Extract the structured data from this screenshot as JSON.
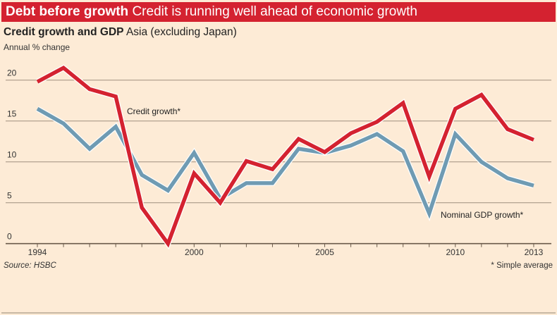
{
  "header": {
    "title_bold": "Debt before growth",
    "title_rest": "Credit is running well ahead of economic growth"
  },
  "chart_data": {
    "type": "line",
    "title": "Credit growth and GDP",
    "subtitle": "Asia (excluding Japan)",
    "ylabel": "Annual % change",
    "xlabel": "",
    "x": [
      1994,
      1995,
      1996,
      1997,
      1998,
      1999,
      2000,
      2001,
      2002,
      2003,
      2004,
      2005,
      2006,
      2007,
      2008,
      2009,
      2010,
      2011,
      2012,
      2013
    ],
    "xticks": [
      "1994",
      "2000",
      "2005",
      "2010",
      "2013"
    ],
    "yticks": [
      "0",
      "5",
      "10",
      "15",
      "20"
    ],
    "ylim": [
      0,
      22
    ],
    "grid": true,
    "series": [
      {
        "name": "Credit growth*",
        "color": "#d42230",
        "values": [
          19.8,
          21.5,
          18.9,
          18.0,
          4.4,
          0.0,
          8.6,
          5.0,
          10.1,
          9.1,
          12.8,
          11.2,
          13.5,
          14.9,
          17.2,
          8.2,
          16.5,
          18.2,
          14.0,
          12.7
        ]
      },
      {
        "name": "Nominal GDP growth*",
        "color": "#6f9bb3",
        "values": [
          16.5,
          14.7,
          11.6,
          14.3,
          8.4,
          6.5,
          11.1,
          5.5,
          7.4,
          7.4,
          11.6,
          11.1,
          12.0,
          13.4,
          11.3,
          3.7,
          13.4,
          10.0,
          8.0,
          7.1
        ]
      }
    ],
    "source": "Source: HSBC",
    "footnote": "* Simple average"
  }
}
